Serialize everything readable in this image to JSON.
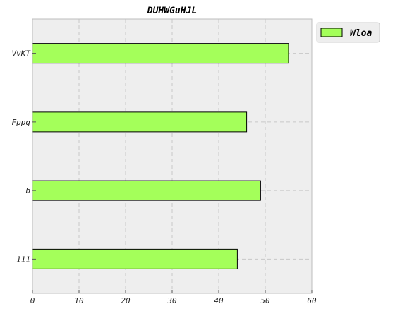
{
  "chart_data": {
    "type": "bar",
    "orientation": "horizontal",
    "title": "DUHWGuHJL",
    "xlabel": "",
    "ylabel": "",
    "categories": [
      "VvKT",
      "Fppg",
      "b",
      "111"
    ],
    "series": [
      {
        "name": "Wloa",
        "values": [
          55,
          46,
          49,
          44
        ],
        "color": "#a4ff5a"
      }
    ],
    "xlim": [
      0,
      60
    ],
    "xticks": [
      0,
      10,
      20,
      30,
      40,
      50,
      60
    ],
    "grid": true,
    "legend_position": "upper-right-outside",
    "background_color": "#eeeeee",
    "bar_edge_color": "#000000"
  }
}
